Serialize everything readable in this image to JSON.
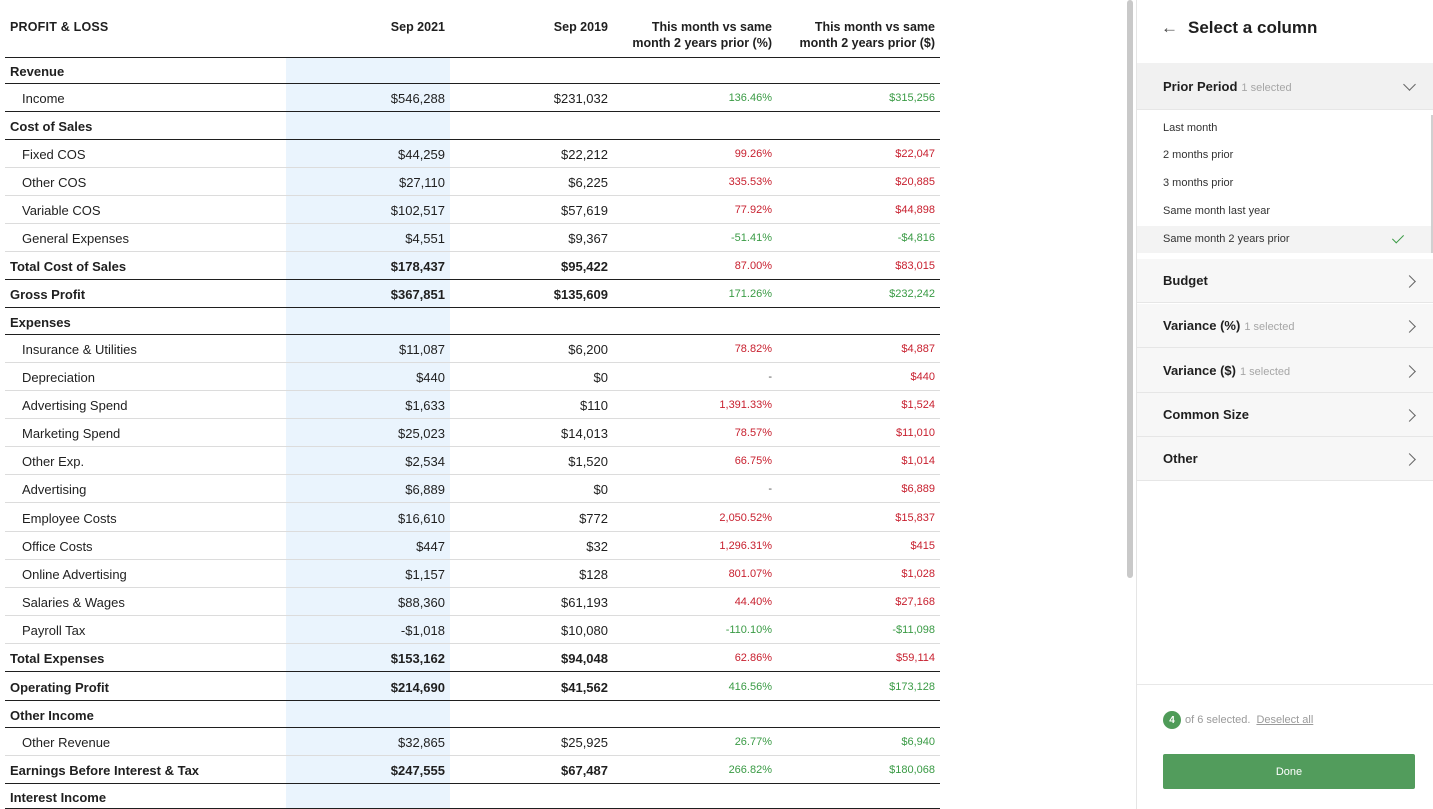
{
  "report": {
    "headers": {
      "label": "PROFIT & LOSS",
      "col1": "Sep 2021",
      "col2": "Sep 2019",
      "col3_line1": "This month vs same",
      "col3_line2": "month 2 years prior (%)",
      "col4_line1": "This month vs same",
      "col4_line2": "month 2 years prior ($)"
    },
    "rows": [
      {
        "type": "section",
        "label": "Revenue"
      },
      {
        "type": "item",
        "label": "Income",
        "v1": "$546,288",
        "v2": "$231,032",
        "v3": "136.46%",
        "v4": "$315,256",
        "tone": "pos"
      },
      {
        "type": "section",
        "label": "Cost of Sales"
      },
      {
        "type": "item",
        "label": "Fixed COS",
        "v1": "$44,259",
        "v2": "$22,212",
        "v3": "99.26%",
        "v4": "$22,047",
        "tone": "neg"
      },
      {
        "type": "item",
        "label": "Other COS",
        "v1": "$27,110",
        "v2": "$6,225",
        "v3": "335.53%",
        "v4": "$20,885",
        "tone": "neg"
      },
      {
        "type": "item",
        "label": "Variable COS",
        "v1": "$102,517",
        "v2": "$57,619",
        "v3": "77.92%",
        "v4": "$44,898",
        "tone": "neg"
      },
      {
        "type": "item",
        "label": "General Expenses",
        "v1": "$4,551",
        "v2": "$9,367",
        "v3": "-51.41%",
        "v4": "-$4,816",
        "tone": "pos"
      },
      {
        "type": "total",
        "label": "Total Cost of Sales",
        "v1": "$178,437",
        "v2": "$95,422",
        "v3": "87.00%",
        "v4": "$83,015",
        "tone": "neg"
      },
      {
        "type": "total",
        "label": "Gross Profit",
        "v1": "$367,851",
        "v2": "$135,609",
        "v3": "171.26%",
        "v4": "$232,242",
        "tone": "pos"
      },
      {
        "type": "section",
        "label": "Expenses"
      },
      {
        "type": "item",
        "label": "Insurance & Utilities",
        "v1": "$11,087",
        "v2": "$6,200",
        "v3": "78.82%",
        "v4": "$4,887",
        "tone": "neg"
      },
      {
        "type": "item",
        "label": "Depreciation",
        "v1": "$440",
        "v2": "$0",
        "v3": "-",
        "v4": "$440",
        "tone": "neg"
      },
      {
        "type": "item",
        "label": "Advertising Spend",
        "v1": "$1,633",
        "v2": "$110",
        "v3": "1,391.33%",
        "v4": "$1,524",
        "tone": "neg"
      },
      {
        "type": "item",
        "label": "Marketing Spend",
        "v1": "$25,023",
        "v2": "$14,013",
        "v3": "78.57%",
        "v4": "$11,010",
        "tone": "neg"
      },
      {
        "type": "item",
        "label": "Other Exp.",
        "v1": "$2,534",
        "v2": "$1,520",
        "v3": "66.75%",
        "v4": "$1,014",
        "tone": "neg"
      },
      {
        "type": "item",
        "label": "Advertising",
        "v1": "$6,889",
        "v2": "$0",
        "v3": "-",
        "v4": "$6,889",
        "tone": "neg"
      },
      {
        "type": "item",
        "label": "Employee Costs",
        "v1": "$16,610",
        "v2": "$772",
        "v3": "2,050.52%",
        "v4": "$15,837",
        "tone": "neg"
      },
      {
        "type": "item",
        "label": "Office Costs",
        "v1": "$447",
        "v2": "$32",
        "v3": "1,296.31%",
        "v4": "$415",
        "tone": "neg"
      },
      {
        "type": "item",
        "label": "Online Advertising",
        "v1": "$1,157",
        "v2": "$128",
        "v3": "801.07%",
        "v4": "$1,028",
        "tone": "neg"
      },
      {
        "type": "item",
        "label": "Salaries & Wages",
        "v1": "$88,360",
        "v2": "$61,193",
        "v3": "44.40%",
        "v4": "$27,168",
        "tone": "neg"
      },
      {
        "type": "item",
        "label": "Payroll Tax",
        "v1": "-$1,018",
        "v2": "$10,080",
        "v3": "-110.10%",
        "v4": "-$11,098",
        "tone": "pos"
      },
      {
        "type": "total",
        "label": "Total Expenses",
        "v1": "$153,162",
        "v2": "$94,048",
        "v3": "62.86%",
        "v4": "$59,114",
        "tone": "neg"
      },
      {
        "type": "total",
        "label": "Operating Profit",
        "v1": "$214,690",
        "v2": "$41,562",
        "v3": "416.56%",
        "v4": "$173,128",
        "tone": "pos"
      },
      {
        "type": "section",
        "label": "Other Income"
      },
      {
        "type": "item",
        "label": "Other Revenue",
        "v1": "$32,865",
        "v2": "$25,925",
        "v3": "26.77%",
        "v4": "$6,940",
        "tone": "pos"
      },
      {
        "type": "total",
        "label": "Earnings Before Interest & Tax",
        "v1": "$247,555",
        "v2": "$67,487",
        "v3": "266.82%",
        "v4": "$180,068",
        "tone": "pos"
      },
      {
        "type": "section",
        "label": "Interest Income"
      }
    ]
  },
  "panel": {
    "back_icon": "arrow-left-icon",
    "title": "Select a column",
    "groups": [
      {
        "name": "Prior Period",
        "selected": "1 selected",
        "expanded": true
      },
      {
        "name": "Budget",
        "selected": ""
      },
      {
        "name": "Variance (%)",
        "selected": "1 selected"
      },
      {
        "name": "Variance ($)",
        "selected": "1 selected"
      },
      {
        "name": "Common Size",
        "selected": ""
      },
      {
        "name": "Other",
        "selected": ""
      }
    ],
    "options": [
      {
        "label": "Last month",
        "selected": false
      },
      {
        "label": "2 months prior",
        "selected": false
      },
      {
        "label": "3 months prior",
        "selected": false
      },
      {
        "label": "Same month last year",
        "selected": false
      },
      {
        "label": "Same month 2 years prior",
        "selected": true
      }
    ],
    "footer": {
      "count": "4",
      "of_text": "of 6 selected.",
      "deselect": "Deselect all"
    },
    "done": "Done"
  },
  "colors": {
    "negative": "#c8202f",
    "positive": "#3a9b45",
    "highlight_column": "#eaf4fd",
    "done_button": "#529c5c"
  }
}
